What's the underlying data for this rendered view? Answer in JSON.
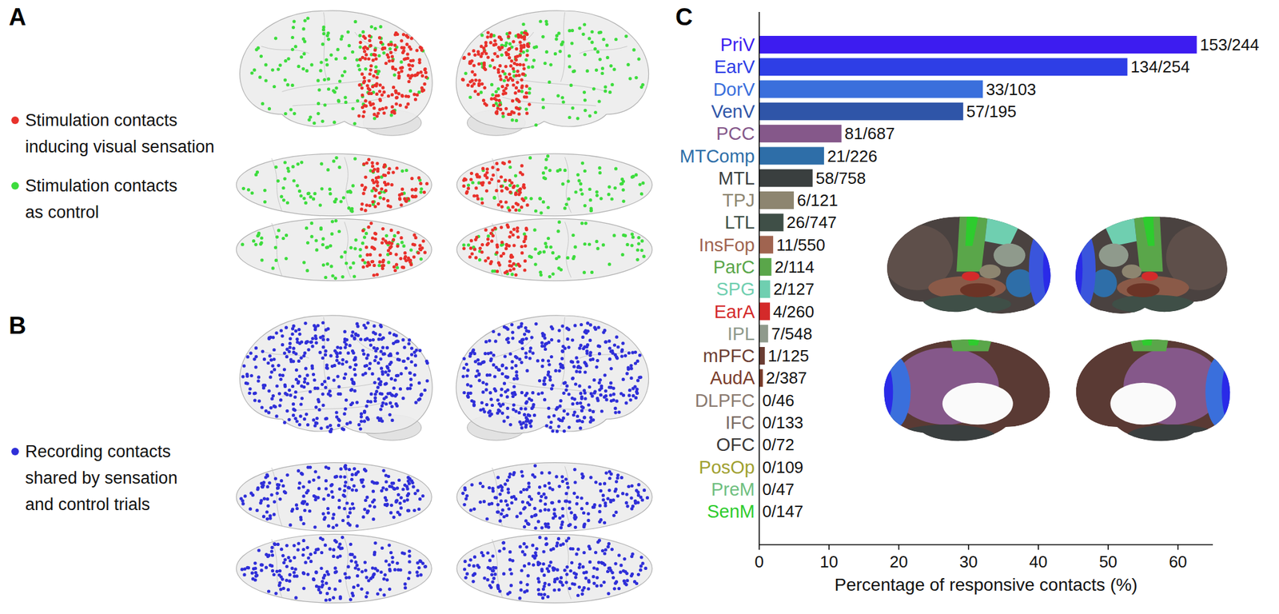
{
  "figure": {
    "panel_labels": [
      "A",
      "B",
      "C"
    ],
    "panel_a_legend": [
      {
        "label_lines": [
          "Stimulation contacts",
          "inducing visual sensation"
        ],
        "color": "#e8312b"
      },
      {
        "label_lines": [
          "Stimulation contacts",
          "as control"
        ],
        "color": "#3ddc3d"
      }
    ],
    "panel_b_legend": [
      {
        "label_lines": [
          "Recording contacts",
          "shared by sensation",
          "and control trials"
        ],
        "color": "#2f2fd8"
      }
    ]
  },
  "chart_data": {
    "type": "bar",
    "orientation": "horizontal",
    "categories": [
      "PriV",
      "EarV",
      "DorV",
      "VenV",
      "PCC",
      "MTComp",
      "MTL",
      "TPJ",
      "LTL",
      "InsFop",
      "ParC",
      "SPG",
      "EarA",
      "IPL",
      "mPFC",
      "AudA",
      "DLPFC",
      "IFC",
      "OFC",
      "PosOp",
      "PreM",
      "SenM"
    ],
    "values": [
      62.7,
      52.76,
      32.04,
      29.23,
      11.79,
      9.29,
      7.65,
      4.96,
      3.48,
      2.0,
      1.75,
      1.57,
      1.54,
      1.28,
      0.8,
      0.52,
      0,
      0,
      0,
      0,
      0,
      0
    ],
    "value_labels": [
      "153/244",
      "134/254",
      "33/103",
      "57/195",
      "81/687",
      "21/226",
      "58/758",
      "6/121",
      "26/747",
      "11/550",
      "2/114",
      "2/127",
      "4/260",
      "7/548",
      "1/125",
      "2/387",
      "0/46",
      "0/133",
      "0/72",
      "0/109",
      "0/47",
      "0/147"
    ],
    "colors": [
      "#3d1cf0",
      "#2e3ee6",
      "#3a6fdc",
      "#2f55a8",
      "#85588a",
      "#2e6ea8",
      "#3a3f3f",
      "#8d8570",
      "#3f4f47",
      "#a06450",
      "#5aa64a",
      "#6fcfb0",
      "#d42a2a",
      "#8f9a8c",
      "#6b3d33",
      "#7a3c2a",
      "#8a7a70",
      "#7a6a64",
      "#3a3838",
      "#a0a030",
      "#6fbf80",
      "#2ecc2e"
    ],
    "xlabel": "Percentage of responsive contacts (%)",
    "xlim": [
      0,
      65
    ],
    "xticks": [
      0,
      10,
      20,
      30,
      40,
      50,
      60
    ],
    "data_labels": true,
    "grid": false
  }
}
